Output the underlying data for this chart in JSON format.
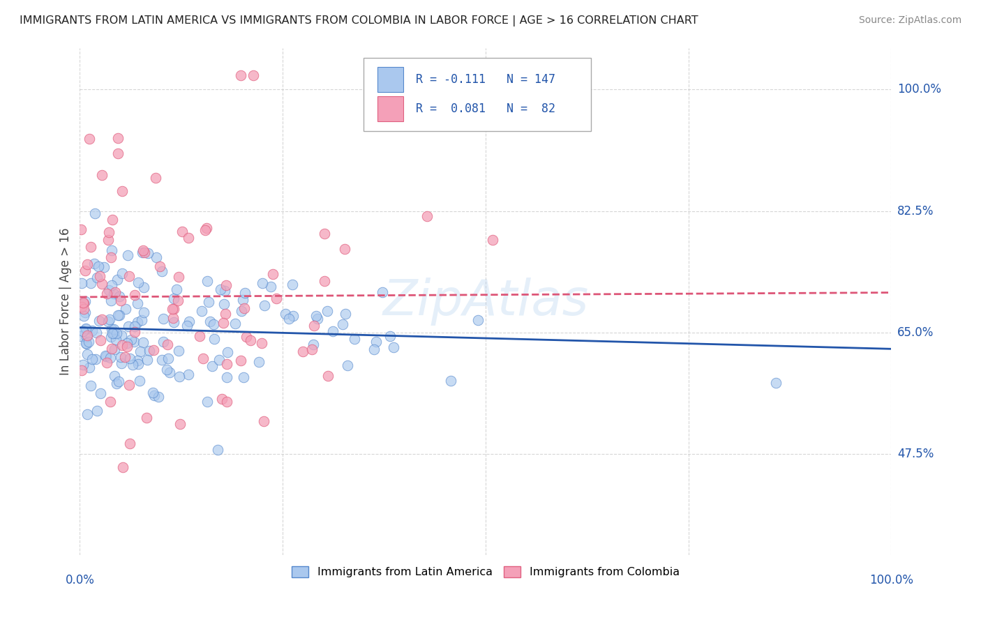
{
  "title": "IMMIGRANTS FROM LATIN AMERICA VS IMMIGRANTS FROM COLOMBIA IN LABOR FORCE | AGE > 16 CORRELATION CHART",
  "source": "Source: ZipAtlas.com",
  "ylabel": "In Labor Force | Age > 16",
  "xlim": [
    0.0,
    1.0
  ],
  "ylim": [
    0.33,
    1.06
  ],
  "yticks": [
    0.475,
    0.65,
    0.825,
    1.0
  ],
  "ytick_labels": [
    "47.5%",
    "65.0%",
    "82.5%",
    "100.0%"
  ],
  "xticks": [
    0.0,
    0.25,
    0.5,
    0.75,
    1.0
  ],
  "blue_color": "#aac8ee",
  "pink_color": "#f4a0b8",
  "blue_edge": "#5588cc",
  "pink_edge": "#e06080",
  "R_blue": -0.111,
  "N_blue": 147,
  "R_pink": 0.081,
  "N_pink": 82,
  "legend_label_blue": "Immigrants from Latin America",
  "legend_label_pink": "Immigrants from Colombia",
  "blue_seed": 77,
  "pink_seed": 55,
  "grid_color": "#cccccc",
  "trend_blue_color": "#2255aa",
  "trend_pink_color": "#dd5577",
  "background_color": "#ffffff",
  "watermark": "ZipAtlas",
  "watermark_color": "#aaccee"
}
